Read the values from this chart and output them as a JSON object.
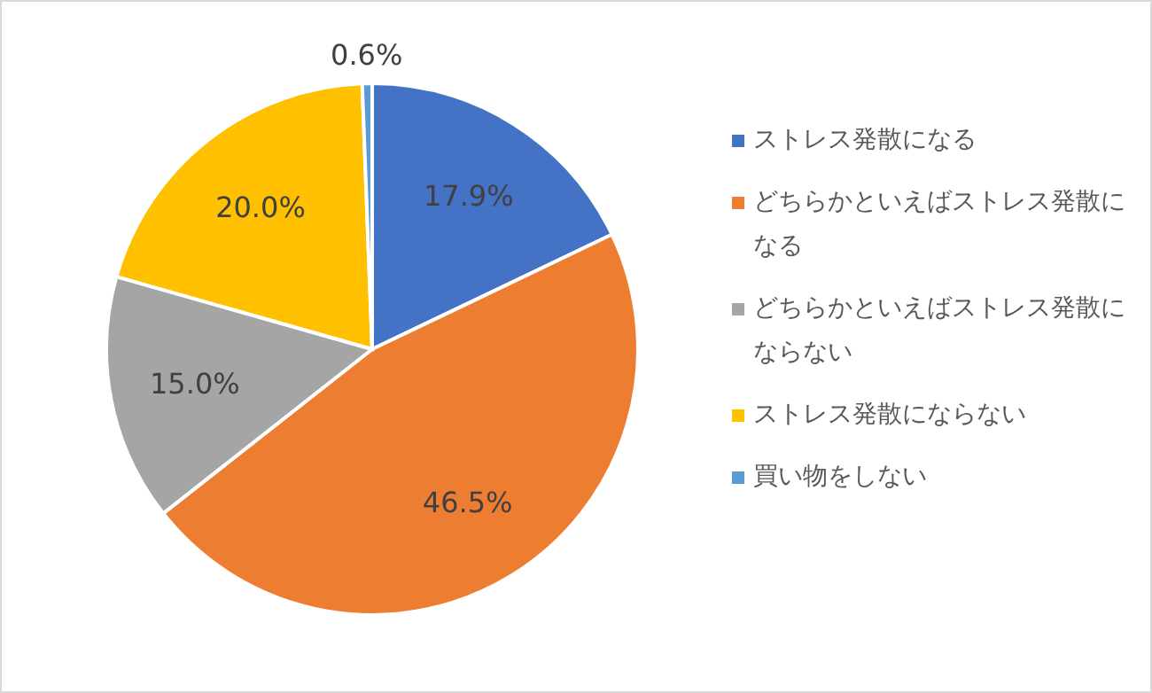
{
  "chart_data": {
    "type": "pie",
    "categories": [
      "ストレス発散になる",
      "どちらかといえばストレス発散になる",
      "どちらかといえばストレス発散にならない",
      "ストレス発散にならない",
      "買い物をしない"
    ],
    "values": [
      17.9,
      46.5,
      15.0,
      20.0,
      0.6
    ],
    "colors": [
      "#4472c4",
      "#ed7d31",
      "#a5a5a5",
      "#ffc000",
      "#5b9bd5"
    ],
    "value_labels": [
      "17.9%",
      "46.5%",
      "15.0%",
      "20.0%",
      "0.6%"
    ],
    "legend": "right"
  }
}
